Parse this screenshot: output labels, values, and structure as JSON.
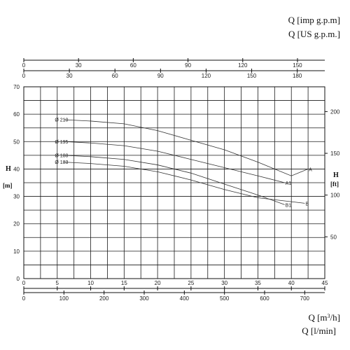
{
  "chart_data": {
    "type": "line",
    "units": {
      "q_imp": "Q [imp g.p.m]",
      "q_us": "Q [US g.p.m.]",
      "q_m3h_prefix": "Q [m",
      "q_m3h_sup": "3",
      "q_m3h_suffix": "/h]",
      "q_lmin": "Q [l/min]"
    },
    "y_left": {
      "title": "H",
      "unit": "[m]",
      "range": [
        0,
        70
      ],
      "ticks": [
        0,
        10,
        20,
        30,
        40,
        50,
        60,
        70
      ]
    },
    "y_right": {
      "title": "H",
      "unit": "[ft]",
      "ticks": [
        50,
        100,
        150,
        200
      ],
      "tick_values_m": [
        15.24,
        30.48,
        45.72,
        60.96
      ]
    },
    "x_m3h": {
      "range": [
        0,
        45
      ],
      "ticks": [
        0,
        5,
        10,
        15,
        20,
        25,
        30,
        35,
        40,
        45
      ]
    },
    "x_lmin": {
      "ticks": [
        0,
        100,
        200,
        300,
        400,
        500,
        600,
        700
      ]
    },
    "x_us_gpm": {
      "ticks": [
        0,
        30,
        60,
        90,
        120,
        150,
        180
      ]
    },
    "x_imp_gpm": {
      "ticks": [
        0,
        30,
        60,
        90,
        120,
        150
      ]
    },
    "series": [
      {
        "name": "Ø 210",
        "end_label": "A",
        "x": [
          6,
          10,
          15,
          20,
          25,
          30,
          35,
          40,
          42.5
        ],
        "y": [
          58,
          57.5,
          56.5,
          54,
          50.5,
          47,
          42.5,
          37.5,
          40
        ]
      },
      {
        "name": "Ø 195",
        "end_label": "A1",
        "x": [
          6,
          10,
          15,
          20,
          25,
          30,
          35,
          39
        ],
        "y": [
          50,
          49.5,
          48.5,
          46.5,
          43.5,
          40.5,
          37.5,
          35
        ]
      },
      {
        "name": "Ø 188",
        "end_label": "B1",
        "x": [
          6,
          10,
          15,
          20,
          25,
          30,
          35,
          39
        ],
        "y": [
          45,
          44.5,
          43.5,
          41.5,
          38.5,
          34.5,
          30.5,
          27
        ]
      },
      {
        "name": "Ø 183",
        "end_label": "B",
        "x": [
          6,
          10,
          15,
          20,
          25,
          30,
          35,
          42
        ],
        "y": [
          42.5,
          42,
          41,
          39,
          36,
          32.5,
          29.5,
          27.5
        ]
      }
    ]
  }
}
